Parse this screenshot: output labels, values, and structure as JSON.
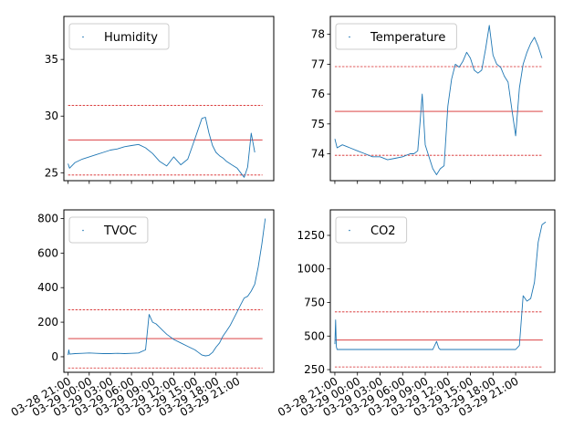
{
  "chart_data": [
    {
      "type": "line",
      "legend": "Humidity",
      "legend_loc": "upper-left",
      "ylim": [
        24.3,
        38.8
      ],
      "yticks": [
        25,
        30,
        35
      ],
      "ytick_labels": [
        "25",
        "30",
        "35"
      ],
      "show_xtick_labels": false,
      "thresholds": [
        {
          "value": 24.8,
          "style": "dashed"
        },
        {
          "value": 27.9,
          "style": "solid"
        },
        {
          "value": 30.95,
          "style": "dashed"
        }
      ],
      "x": [
        0,
        0.2,
        1,
        2,
        3,
        4,
        5,
        6,
        7,
        8,
        9,
        10,
        11,
        12,
        13,
        14,
        15,
        16,
        17,
        18,
        19,
        19.5,
        20,
        20.5,
        21,
        21.5,
        22,
        22.5,
        23,
        23.5,
        24,
        24.5,
        25,
        25.5,
        26,
        26.5
      ],
      "values": [
        25.8,
        25.4,
        25.9,
        26.2,
        26.4,
        26.6,
        26.8,
        27.0,
        27.1,
        27.3,
        27.4,
        27.5,
        27.2,
        26.7,
        26.0,
        25.6,
        26.4,
        25.7,
        26.2,
        28.0,
        29.8,
        29.9,
        28.5,
        27.4,
        26.8,
        26.5,
        26.3,
        26.0,
        25.8,
        25.6,
        25.4,
        25.0,
        24.6,
        25.5,
        28.5,
        26.8
      ]
    },
    {
      "type": "line",
      "legend": "Temperature",
      "legend_loc": "upper-left",
      "ylim": [
        73.1,
        78.6
      ],
      "yticks": [
        73,
        74,
        75,
        76,
        77,
        78
      ],
      "ytick_labels": [
        "73",
        "74",
        "75",
        "76",
        "77",
        "78"
      ],
      "show_xtick_labels": false,
      "thresholds": [
        {
          "value": 73.95,
          "style": "dashed"
        },
        {
          "value": 75.42,
          "style": "solid"
        },
        {
          "value": 76.92,
          "style": "dashed"
        }
      ],
      "x": [
        0,
        0.3,
        1,
        2,
        3,
        4,
        5,
        6,
        7,
        8,
        9,
        10,
        10.5,
        11,
        11.3,
        11.6,
        12,
        12.5,
        13,
        13.5,
        14,
        14.5,
        15,
        15.5,
        16,
        16.5,
        17,
        17.5,
        18,
        18.5,
        19,
        19.5,
        20,
        20.5,
        21,
        21.5,
        22,
        22.5,
        23,
        23.5,
        24,
        24.5,
        25,
        25.5,
        26,
        26.5,
        27,
        27.5
      ],
      "values": [
        74.5,
        74.2,
        74.3,
        74.2,
        74.1,
        74.0,
        73.9,
        73.9,
        73.8,
        73.85,
        73.9,
        74.0,
        74.0,
        74.1,
        75.0,
        76.0,
        74.3,
        73.9,
        73.5,
        73.3,
        73.5,
        73.6,
        75.6,
        76.5,
        77.0,
        76.9,
        77.1,
        77.4,
        77.2,
        76.8,
        76.7,
        76.8,
        77.5,
        78.3,
        77.3,
        77.0,
        76.9,
        76.6,
        76.4,
        75.5,
        74.6,
        76.2,
        77.0,
        77.4,
        77.7,
        77.9,
        77.6,
        77.2
      ]
    },
    {
      "type": "line",
      "legend": "TVOC",
      "legend_loc": "upper-left",
      "ylim": [
        -90,
        850
      ],
      "yticks": [
        0,
        200,
        400,
        600,
        800
      ],
      "ytick_labels": [
        "0",
        "200",
        "400",
        "600",
        "800"
      ],
      "show_xtick_labels": true,
      "thresholds": [
        {
          "value": -65,
          "style": "dashed"
        },
        {
          "value": 105,
          "style": "solid"
        },
        {
          "value": 272,
          "style": "dashed"
        }
      ],
      "x": [
        0,
        0.1,
        0.2,
        1,
        2,
        3,
        4,
        5,
        6,
        7,
        8,
        9,
        10,
        11,
        11.5,
        12,
        12.5,
        13,
        13.5,
        14,
        15,
        16,
        17,
        18,
        18.5,
        19,
        19.5,
        20,
        20.5,
        21,
        21.5,
        22,
        22.5,
        23,
        23.5,
        24,
        24.5,
        25,
        25.5,
        26,
        26.5,
        27,
        27.5,
        28
      ],
      "values": [
        10,
        40,
        15,
        18,
        20,
        22,
        20,
        18,
        18,
        20,
        18,
        20,
        22,
        40,
        245,
        200,
        190,
        170,
        150,
        130,
        100,
        80,
        60,
        40,
        25,
        10,
        5,
        8,
        25,
        55,
        80,
        120,
        150,
        180,
        220,
        260,
        300,
        340,
        350,
        380,
        420,
        520,
        650,
        800
      ]
    },
    {
      "type": "line",
      "legend": "CO2",
      "legend_loc": "upper-left",
      "ylim": [
        230,
        1440
      ],
      "yticks": [
        250,
        500,
        750,
        1000,
        1250
      ],
      "ytick_labels": [
        "250",
        "500",
        "750",
        "1000",
        "1250"
      ],
      "show_xtick_labels": true,
      "thresholds": [
        {
          "value": 270,
          "style": "dashed"
        },
        {
          "value": 470,
          "style": "solid"
        },
        {
          "value": 680,
          "style": "dashed"
        }
      ],
      "x": [
        0,
        0.1,
        0.2,
        0.3,
        1,
        2,
        3,
        4,
        5,
        6,
        7,
        8,
        9,
        10,
        11,
        12,
        13,
        13.5,
        13.8,
        14,
        15,
        16,
        17,
        18,
        18.5,
        19,
        19.5,
        20,
        20.5,
        21,
        21.5,
        22,
        22.5,
        23,
        23.5,
        24,
        24.5,
        25,
        25.5,
        26,
        26.5,
        27,
        27.5,
        28
      ],
      "values": [
        440,
        620,
        420,
        400,
        400,
        400,
        400,
        400,
        400,
        400,
        400,
        400,
        400,
        400,
        400,
        400,
        400,
        460,
        410,
        400,
        400,
        400,
        400,
        400,
        400,
        400,
        400,
        400,
        400,
        400,
        400,
        400,
        400,
        400,
        400,
        400,
        430,
        800,
        760,
        780,
        900,
        1200,
        1330,
        1350
      ]
    }
  ],
  "xlim": [
    -0.6,
    29.2
  ],
  "xticks": [
    0,
    3,
    6,
    9,
    12,
    15,
    18,
    21,
    24
  ],
  "xtick_labels": [
    "03-28 21:00",
    "03-29 00:00",
    "03-29 03:00",
    "03-29 06:00",
    "03-29 09:00",
    "03-29 12:00",
    "03-29 15:00",
    "03-29 18:00",
    "03-29 21:00"
  ],
  "colors": {
    "series": "#1f77b4",
    "threshold": "#d62728",
    "axes": "#000000"
  }
}
